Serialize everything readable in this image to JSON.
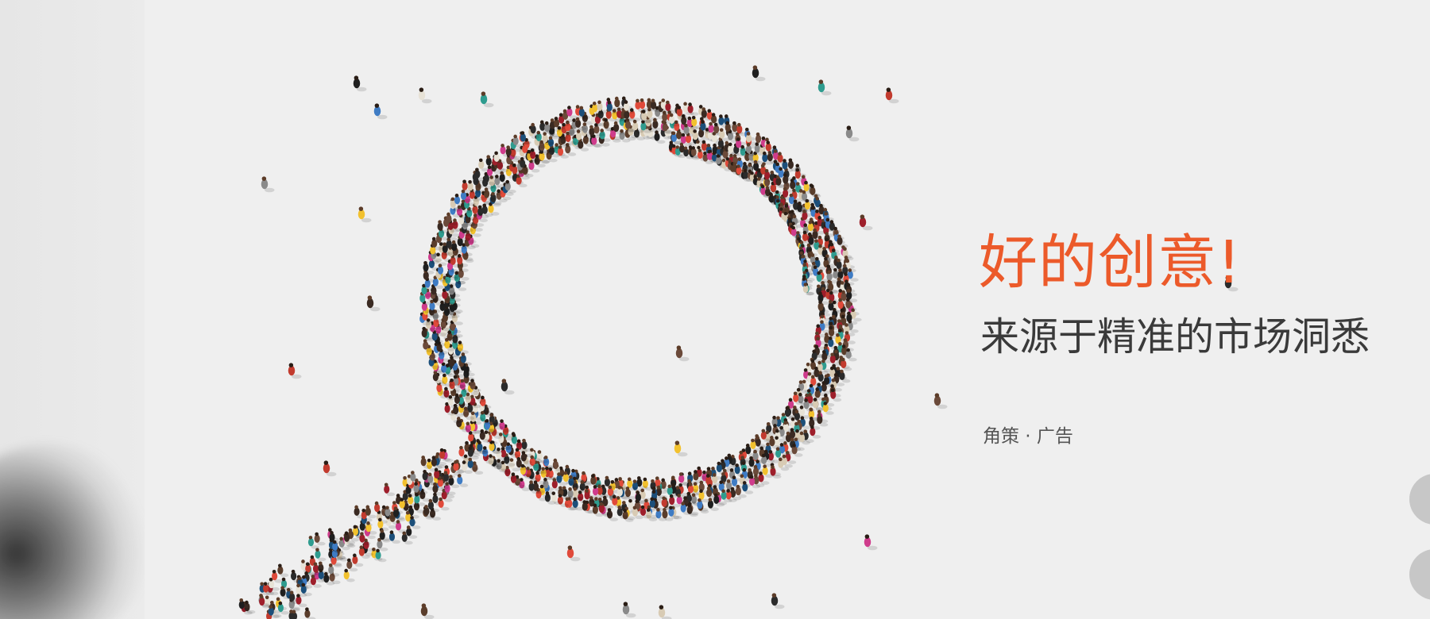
{
  "banner": {
    "headline": "好的创意!",
    "subheadline": "来源于精准的市场洞悉",
    "brand": "角策 · 广告"
  },
  "colors": {
    "accent": "#ec5a2a",
    "subtext": "#3a3a3a",
    "background": "#efefef",
    "nav_bubble": "#c7c7c7"
  },
  "illustration": {
    "subject": "crowd forming a magnifying glass",
    "icon": "magnifying-glass-crowd-icon"
  },
  "carousel": {
    "controls": [
      "prev-slide-button",
      "next-slide-button"
    ]
  }
}
